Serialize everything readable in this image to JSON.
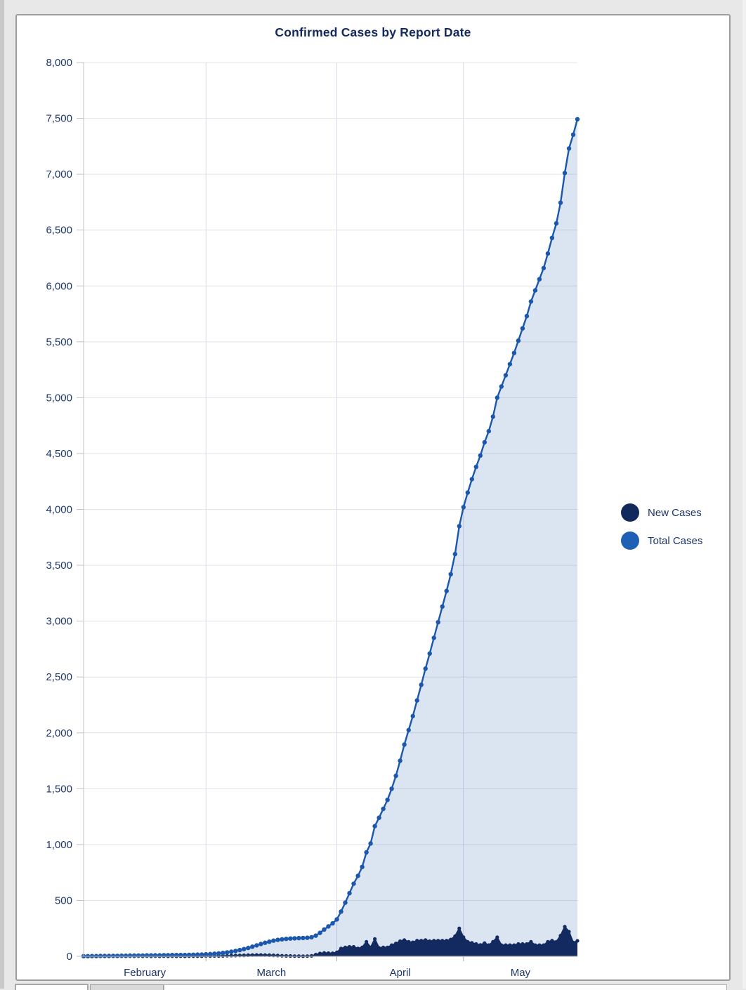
{
  "page": {
    "title": "Confirmed Cases by Report Date"
  },
  "legend": {
    "items": [
      {
        "label": "New Cases",
        "color": "#12295e"
      },
      {
        "label": "Total Cases",
        "color": "#1e60b4"
      }
    ]
  },
  "colors": {
    "title": "#13295e",
    "axis_labels": "#1d366b",
    "h_gridline": "#e4e4e7",
    "v_gridline": "#d5dcec",
    "y_axis_line": "#c2c2c6",
    "x_axis_line": "#a6a9ad",
    "card_border": "#9d9d9d",
    "page_bg": "#e8e8e8"
  },
  "chart_data": {
    "type": "area",
    "title": "Confirmed Cases by Report Date",
    "legend_position": "right",
    "x_axis": {
      "unit": "day",
      "start": "Feb 1",
      "end": "May 28",
      "month_labels": [
        "February",
        "March",
        "April",
        "May"
      ],
      "month_day_counts": [
        29,
        31,
        30,
        28
      ],
      "gridlines": true
    },
    "y_axis": {
      "min": 0,
      "max": 8000,
      "tick_step": 500,
      "tick_labels": [
        "0",
        "500",
        "1,000",
        "1,500",
        "2,000",
        "2,500",
        "3,000",
        "3,500",
        "4,000",
        "4,500",
        "5,000",
        "5,500",
        "6,000",
        "6,500",
        "7,000",
        "7,500",
        "8,000"
      ],
      "gridlines": true
    },
    "series": [
      {
        "name": "New Cases",
        "style": "area-line-markers",
        "color": "#132a60",
        "fill": "#132a60",
        "values": [
          1,
          0,
          1,
          0,
          1,
          0,
          0,
          1,
          0,
          1,
          0,
          1,
          0,
          1,
          0,
          1,
          0,
          1,
          0,
          1,
          0,
          1,
          0,
          1,
          0,
          1,
          1,
          1,
          1,
          2,
          2,
          3,
          3,
          4,
          5,
          6,
          7,
          8,
          9,
          10,
          11,
          12,
          12,
          11,
          10,
          9,
          7,
          5,
          4,
          3,
          2,
          2,
          1,
          2,
          4,
          15,
          25,
          30,
          28,
          27,
          35,
          70,
          80,
          85,
          85,
          70,
          80,
          130,
          80,
          155,
          75,
          80,
          80,
          100,
          115,
          135,
          145,
          130,
          125,
          140,
          140,
          145,
          135,
          140,
          140,
          140,
          140,
          150,
          180,
          250,
          170,
          130,
          120,
          110,
          102,
          118,
          100,
          130,
          170,
          100,
          100,
          100,
          100,
          110,
          110,
          110,
          130,
          100,
          100,
          100,
          130,
          140,
          130,
          185,
          265,
          220,
          124,
          138
        ]
      },
      {
        "name": "Total Cases",
        "style": "area-line-markers",
        "color": "#1b57ad",
        "fill": "rgba(31,86,168,0.16)",
        "values": [
          1,
          1,
          2,
          2,
          3,
          3,
          3,
          4,
          4,
          5,
          5,
          6,
          6,
          7,
          7,
          8,
          8,
          9,
          9,
          10,
          10,
          11,
          11,
          12,
          12,
          13,
          14,
          15,
          16,
          18,
          20,
          23,
          26,
          30,
          35,
          41,
          48,
          56,
          65,
          75,
          86,
          98,
          110,
          121,
          131,
          140,
          147,
          152,
          156,
          159,
          161,
          163,
          164,
          166,
          170,
          185,
          210,
          240,
          268,
          295,
          330,
          400,
          480,
          565,
          650,
          720,
          800,
          930,
          1010,
          1165,
          1240,
          1320,
          1400,
          1500,
          1615,
          1750,
          1895,
          2025,
          2150,
          2290,
          2430,
          2575,
          2710,
          2850,
          2990,
          3130,
          3270,
          3420,
          3600,
          3850,
          4020,
          4150,
          4270,
          4380,
          4482,
          4600,
          4700,
          4830,
          5000,
          5100,
          5200,
          5300,
          5400,
          5510,
          5620,
          5730,
          5860,
          5960,
          6060,
          6160,
          6290,
          6430,
          6560,
          6745,
          7010,
          7230,
          7354,
          7492
        ]
      }
    ]
  }
}
